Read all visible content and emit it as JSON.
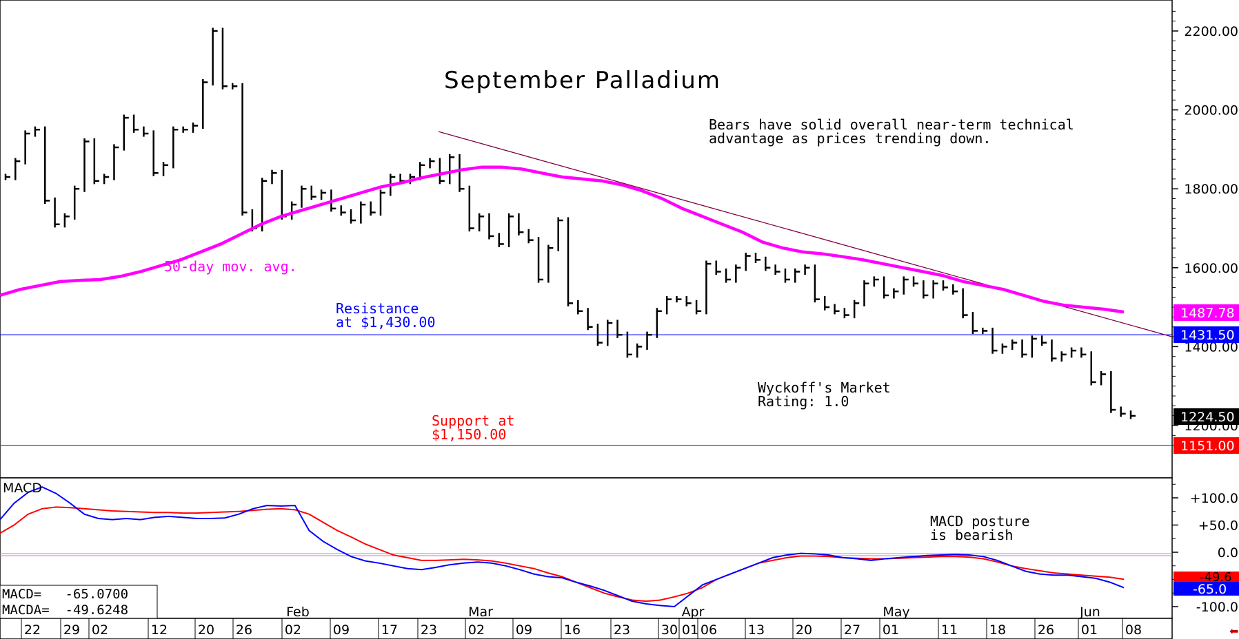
{
  "chart_data": [
    {
      "type": "ohlc-bar",
      "title": "September Palladium",
      "y_ticks": [
        "2200.00",
        "2000.00",
        "1800.00",
        "1600.00",
        "1400.00",
        "1200.00"
      ],
      "ylim": [
        1100,
        2300
      ],
      "month_labels": [
        "Feb",
        "Mar",
        "Apr",
        "May",
        "Jun"
      ],
      "date_labels": [
        "22",
        "29",
        "02",
        "12",
        "20",
        "26",
        "02",
        "09",
        "17",
        "23",
        "02",
        "09",
        "16",
        "23",
        "30",
        "01",
        "06",
        "13",
        "20",
        "27",
        "01",
        "11",
        "18",
        "26",
        "01",
        "08"
      ],
      "series": [
        {
          "name": "50-day mov. avg.",
          "color": "#ff00ff",
          "values": [
            1530,
            1545,
            1555,
            1565,
            1568,
            1570,
            1578,
            1590,
            1605,
            1620,
            1640,
            1660,
            1685,
            1710,
            1730,
            1745,
            1760,
            1775,
            1790,
            1805,
            1815,
            1828,
            1838,
            1848,
            1855,
            1855,
            1850,
            1840,
            1830,
            1825,
            1820,
            1810,
            1795,
            1775,
            1750,
            1730,
            1710,
            1690,
            1665,
            1650,
            1640,
            1635,
            1628,
            1620,
            1610,
            1600,
            1590,
            1580,
            1565,
            1555,
            1545,
            1530,
            1515,
            1505,
            1500,
            1495,
            1487.78
          ]
        }
      ],
      "price_bars": [
        1830,
        1870,
        1940,
        1950,
        1770,
        1710,
        1730,
        1800,
        1920,
        1820,
        1830,
        1905,
        1980,
        1950,
        1940,
        1840,
        1860,
        1950,
        1950,
        1960,
        2070,
        2200,
        2060,
        2060,
        1740,
        1700,
        1820,
        1840,
        1730,
        1760,
        1800,
        1780,
        1790,
        1750,
        1740,
        1720,
        1760,
        1740,
        1790,
        1830,
        1820,
        1830,
        1860,
        1870,
        1820,
        1880,
        1800,
        1700,
        1730,
        1680,
        1660,
        1730,
        1690,
        1670,
        1570,
        1650,
        1720,
        1510,
        1490,
        1450,
        1410,
        1460,
        1430,
        1380,
        1400,
        1430,
        1490,
        1520,
        1520,
        1510,
        1490,
        1610,
        1590,
        1570,
        1600,
        1630,
        1620,
        1600,
        1590,
        1570,
        1590,
        1600,
        1520,
        1500,
        1490,
        1480,
        1510,
        1560,
        1570,
        1530,
        1540,
        1570,
        1560,
        1530,
        1560,
        1550,
        1540,
        1480,
        1440,
        1440,
        1390,
        1400,
        1410,
        1380,
        1420,
        1410,
        1370,
        1380,
        1390,
        1380,
        1310,
        1330,
        1240,
        1230,
        1224.5
      ],
      "horizontal_lines": [
        {
          "label": "Resistance\nat $1,430.00",
          "value": 1430,
          "color": "#0000ff",
          "price_tag": "1431.50"
        },
        {
          "label": "Support at\n$1,150.00",
          "value": 1150,
          "color": "#ff0000",
          "price_tag": "1151.00"
        }
      ],
      "price_tags": {
        "ma": "1487.78",
        "last": "1224.50"
      },
      "annotations": {
        "ma_label": "50-day mov. avg.",
        "resistance_label": "Resistance\nat $1,430.00",
        "support_label": "Support at\n$1,150.00",
        "note_bears": "Bears have solid overall near-term technical\nadvantage as prices trending down.",
        "rating": "Wyckoff's Market\nRating: 1.0"
      },
      "colors": {
        "ma": "#ff00ff",
        "resistance": "#0000ff",
        "support": "#ff0000",
        "trendline": "#800040",
        "bars": "#000000"
      }
    },
    {
      "type": "line",
      "title": "MACD",
      "y_ticks": [
        "+100.0",
        "+50.0",
        "0.0",
        "-100.0"
      ],
      "ylim": [
        -110,
        140
      ],
      "series": [
        {
          "name": "MACD",
          "color": "#0000ff",
          "values": [
            60,
            90,
            110,
            120,
            108,
            90,
            70,
            62,
            60,
            62,
            60,
            64,
            66,
            64,
            62,
            62,
            63,
            70,
            80,
            86,
            85,
            86,
            40,
            20,
            5,
            -8,
            -16,
            -20,
            -25,
            -30,
            -32,
            -28,
            -23,
            -20,
            -18,
            -20,
            -25,
            -32,
            -40,
            -45,
            -47,
            -55,
            -62,
            -70,
            -80,
            -90,
            -95,
            -98,
            -100,
            -80,
            -60,
            -50,
            -40,
            -30,
            -20,
            -10,
            -5,
            -2,
            -3,
            -5,
            -10,
            -12,
            -15,
            -12,
            -10,
            -8,
            -6,
            -5,
            -4,
            -5,
            -8,
            -15,
            -25,
            -35,
            -40,
            -42,
            -42,
            -45,
            -48,
            -55,
            -65.07
          ]
        },
        {
          "name": "MACDA",
          "color": "#ff0000",
          "values": [
            35,
            50,
            70,
            80,
            83,
            82,
            80,
            78,
            76,
            75,
            74,
            73,
            73,
            72,
            72,
            73,
            74,
            75,
            77,
            79,
            80,
            78,
            70,
            55,
            40,
            28,
            15,
            5,
            -5,
            -10,
            -15,
            -15,
            -14,
            -13,
            -14,
            -16,
            -20,
            -25,
            -30,
            -38,
            -45,
            -55,
            -65,
            -75,
            -82,
            -88,
            -90,
            -88,
            -82,
            -75,
            -65,
            -50,
            -40,
            -30,
            -20,
            -15,
            -10,
            -7,
            -7,
            -8,
            -10,
            -11,
            -12,
            -12,
            -11,
            -10,
            -9,
            -8,
            -8,
            -9,
            -12,
            -18,
            -25,
            -30,
            -34,
            -38,
            -40,
            -42,
            -44,
            -46,
            -49.62
          ]
        }
      ],
      "readouts": {
        "macd": "MACD=   -65.0700",
        "macda": "MACDA=  -49.6248"
      },
      "price_tags": {
        "macd": "-65.0",
        "macda": "-49.6"
      },
      "annotations": {
        "posture": "MACD posture\nis bearish"
      }
    }
  ]
}
